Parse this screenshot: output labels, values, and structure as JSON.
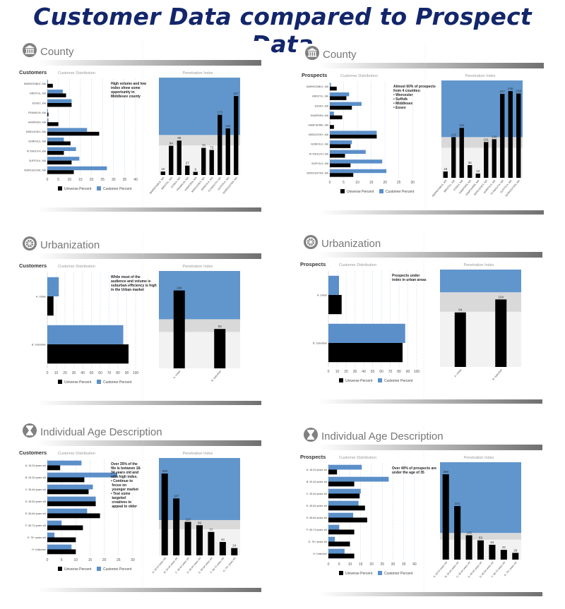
{
  "page_title": "Customer Data compared to Prospect Data",
  "legend": {
    "universe": "Universe Percent",
    "customer": "Customer Percent"
  },
  "colors": {
    "universe": "#000000",
    "customer": "#5b8fc9",
    "title": "#13266b",
    "band_high": "#6196cc",
    "band_mid": "#d9d9d9",
    "band_low": "#f2f2f2"
  },
  "chart_data": [
    {
      "type": "bar",
      "section": "County",
      "icon": "building-icon",
      "audience": "Customers",
      "dist_title": "Customer Distribution",
      "index_title": "Penetration Index",
      "categories": [
        "BARNSTABLE, MA",
        "BRISTOL, MA",
        "ESSEX, MA",
        "FRANKLIN, MA",
        "HAMPDEN, MA",
        "MIDDLESEX, MA",
        "NORFOLK, MA",
        "PLYMOUTH, MA",
        "SUFFOLK, MA",
        "WORCESTER, MA"
      ],
      "universe": [
        2.5,
        8.5,
        11,
        0.5,
        5,
        23.5,
        10.5,
        7.5,
        11,
        12
      ],
      "customer": [
        0.3,
        7,
        11,
        0.3,
        0.5,
        18,
        7.5,
        13,
        14.5,
        27
      ],
      "xlim": [
        0,
        40
      ],
      "xticks": [
        0,
        5,
        10,
        15,
        20,
        25,
        30,
        35,
        40
      ],
      "index_categories": [
        "BARNSTABLE, MA",
        "BRISTOL, MA",
        "ESSEX, MA",
        "FRANKLIN, MA",
        "HAMPDEN, MA",
        "MIDDLESEX, MA",
        "NORFOLK, MA",
        "PLYMOUTH, MA",
        "SUFFOLK, MA",
        "WORCESTER, MA"
      ],
      "index": [
        10,
        84,
        99,
        27,
        9,
        78,
        72,
        173,
        134,
        227
      ],
      "index_labels": [
        "10",
        "84",
        "99",
        "27",
        "9",
        "78",
        "72",
        "173",
        "134",
        "227"
      ],
      "index_ylim": [
        0,
        280
      ],
      "bands": [
        85,
        115
      ],
      "annotation": [
        "High volume and low",
        "index  show some",
        "opportunity in",
        "Middlesex county"
      ]
    },
    {
      "type": "bar",
      "section": "County",
      "icon": "building-icon",
      "audience": "Prospects",
      "dist_title": "Customer Distribution",
      "index_title": "Penetration Index",
      "categories": [
        "BARNSTABLE, MA",
        "BRISTOL, MA",
        "ESSEX, MA",
        "HAMPDEN, MA",
        "HAMPSHIRE, MA",
        "MIDDLESEX, MA",
        "NORFOLK, MA",
        "PLYMOUTH, MA",
        "SUFFOLK, MA",
        "WORCESTER, MA"
      ],
      "universe": [
        2.5,
        6,
        8,
        4.5,
        1.5,
        17,
        7.5,
        5.5,
        7.5,
        8.5
      ],
      "customer": [
        0.4,
        7,
        11.5,
        1.5,
        0,
        17,
        8,
        13,
        19,
        20.5
      ],
      "xlim": [
        0,
        32
      ],
      "xticks": [
        0,
        5,
        10,
        15,
        20,
        25,
        30
      ],
      "index_categories": [
        "BARNSTABLE, MA",
        "BRISTOL, MA",
        "ESSEX, MA",
        "HAMPDEN, MA",
        "HAMPSHIRE, MA",
        "MIDDLESEX, MA",
        "NORFOLK, MA",
        "PLYMOUTH, MA",
        "SUFFOLK, MA",
        "WORCESTER, MA"
      ],
      "index": [
        18,
        115,
        141,
        36,
        12,
        101,
        109,
        237,
        245,
        238
      ],
      "index_labels": [
        "18",
        "115",
        "141",
        "36",
        "12",
        "101",
        "109",
        "237",
        "245",
        "238"
      ],
      "index_ylim": [
        0,
        275
      ],
      "bands": [
        85,
        115
      ],
      "annotation": [
        "Almost 60% of prospects",
        "from 4 counties:",
        "•     Worcester",
        "•     Suffolk",
        "•     Middlesex",
        "•     Essex"
      ]
    },
    {
      "type": "bar",
      "section": "Urbanization",
      "icon": "wheel-icon",
      "audience": "Customers",
      "dist_title": "Customer Distribution",
      "index_title": "Penetration Index",
      "categories": [
        "A. Urban",
        "B. Suburban"
      ],
      "universe": [
        7,
        92
      ],
      "customer": [
        13,
        86
      ],
      "xlim": [
        0,
        100
      ],
      "xticks": [
        0,
        10,
        20,
        30,
        40,
        50,
        60,
        70,
        80,
        90,
        100
      ],
      "index_categories": [
        "A. Urban",
        "B. Suburban"
      ],
      "index": [
        184,
        93
      ],
      "index_labels": [
        "184",
        "93"
      ],
      "index_ylim": [
        0,
        230
      ],
      "bands": [
        86,
        116
      ],
      "annotation": [
        "While most of the",
        "audience and volume is",
        "suburban efficiency is high",
        "in the Urban market"
      ]
    },
    {
      "type": "bar",
      "section": "Urbanization",
      "icon": "wheel-icon",
      "audience": "Prospects",
      "dist_title": "Customer Distribution",
      "index_title": "Penetration Index",
      "categories": [
        "A. Urban",
        "B. Suburban"
      ],
      "universe": [
        15,
        84
      ],
      "customer": [
        12,
        87
      ],
      "xlim": [
        0,
        100
      ],
      "xticks": [
        0,
        10,
        20,
        30,
        40,
        50,
        60,
        70,
        80,
        90,
        100
      ],
      "index_categories": [
        "A. Urban",
        "B. Suburban"
      ],
      "index": [
        84,
        104
      ],
      "index_labels": [
        "84",
        "104"
      ],
      "index_ylim": [
        0,
        150
      ],
      "bands": [
        85,
        115
      ],
      "annotation": [
        "Prospects under",
        "index in urban areas"
      ]
    },
    {
      "type": "bar",
      "section": "Individual Age Description",
      "icon": "hourglass-icon",
      "audience": "Customers",
      "dist_title": "Customer Distribution",
      "index_title": "Penetration Index",
      "categories": [
        "A: 18-24 years old",
        "B: 25-34 years old",
        "C: 35-44 years old",
        "D: 45-54 years old",
        "E: 55-64 years old",
        "F: 65-74 years old",
        "G: 75+ years old",
        "H: Unknown"
      ],
      "universe": [
        4.5,
        13,
        14.5,
        17,
        18.5,
        12.5,
        10,
        10
      ],
      "customer": [
        12,
        24.5,
        16,
        17,
        14,
        5,
        2.5,
        8.5
      ],
      "xlim": [
        0,
        31
      ],
      "xticks": [
        0,
        5,
        10,
        15,
        20,
        25,
        30
      ],
      "index_categories": [
        "A: 18-24 years old",
        "B: 25-34 years old",
        "C: 35-44 years old",
        "D: 45-54 years old",
        "E: 55-64 years old",
        "F: 65-74 years old",
        "G: 75+ years old"
      ],
      "index": [
        269,
        187,
        110,
        99,
        77,
        44,
        24
      ],
      "index_labels": [
        "269",
        "187",
        "110",
        "99",
        "77",
        "44",
        "24"
      ],
      "index_ylim": [
        0,
        320
      ],
      "bands": [
        86,
        116
      ],
      "annotation": [
        "Over 35% of the",
        "file is between 18-",
        "34 years old and",
        "with high index.",
        "•  Continue to",
        "   focus on",
        "   younger market",
        "•  Test some",
        "   targeted",
        "   creatives to",
        "   appeal to older"
      ]
    },
    {
      "type": "bar",
      "section": "Individual Age Description",
      "icon": "hourglass-icon",
      "audience": "Prospects",
      "dist_title": "Customer Distribution",
      "index_title": "Penetration Index",
      "categories": [
        "A: 18-24 years old",
        "B: 25-34 years old",
        "C: 35-44 years old",
        "D: 45-54 years old",
        "E: 55-64 years old",
        "F: 65-74 years old",
        "G: 75+ years old",
        "H: Unknown"
      ],
      "universe": [
        4,
        12,
        14.5,
        17,
        18,
        12,
        10,
        12
      ],
      "customer": [
        15.5,
        28,
        15,
        14,
        11.5,
        5,
        3,
        7.5
      ],
      "xlim": [
        0,
        41
      ],
      "xticks": [
        0,
        5,
        10,
        15,
        20,
        25,
        30,
        35,
        40
      ],
      "index_categories": [
        "A: 18-24 years old",
        "B: 25-34 years old",
        "C: 35-44 years old",
        "D: 45-54 years old",
        "E: 55-64 years old",
        "F: 65-74 years old",
        "G: 75+ years old"
      ],
      "index": [
        368,
        231,
        105,
        83,
        64,
        42,
        29
      ],
      "index_labels": [
        "368",
        "231",
        "105",
        "83",
        "64",
        "42",
        "29"
      ],
      "index_ylim": [
        0,
        420
      ],
      "bands": [
        86,
        115
      ],
      "annotation": [
        "Over 40% of prospects are",
        "under the age of 35"
      ]
    }
  ]
}
